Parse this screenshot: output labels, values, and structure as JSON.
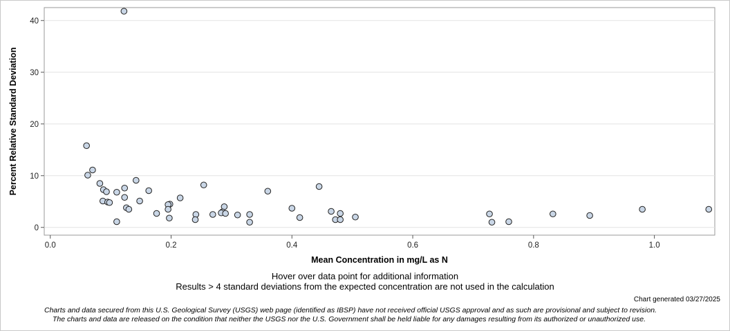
{
  "chart_data": {
    "type": "scatter",
    "xlabel": "Mean Concentration in mg/L as N",
    "ylabel": "Percent Relative Standard Deviation",
    "xlim": [
      -0.01,
      1.1
    ],
    "ylim": [
      -1.5,
      42.5
    ],
    "x_ticks": [
      0.0,
      0.2,
      0.4,
      0.6,
      0.8,
      1.0
    ],
    "x_tick_labels": [
      "0.0",
      "0.2",
      "0.4",
      "0.6",
      "0.8",
      "1.0"
    ],
    "y_ticks": [
      0,
      10,
      20,
      30,
      40
    ],
    "y_tick_labels": [
      "0",
      "10",
      "20",
      "30",
      "40"
    ],
    "grid": "horizontal",
    "marker_fill": "#c9d6e6",
    "marker_stroke": "#222222",
    "points": [
      {
        "x": 0.122,
        "y": 41.8
      },
      {
        "x": 0.06,
        "y": 15.8
      },
      {
        "x": 0.07,
        "y": 11.1
      },
      {
        "x": 0.062,
        "y": 10.1
      },
      {
        "x": 0.142,
        "y": 9.1
      },
      {
        "x": 0.082,
        "y": 8.5
      },
      {
        "x": 0.254,
        "y": 8.2
      },
      {
        "x": 0.445,
        "y": 7.9
      },
      {
        "x": 0.123,
        "y": 7.6
      },
      {
        "x": 0.088,
        "y": 7.3
      },
      {
        "x": 0.163,
        "y": 7.1
      },
      {
        "x": 0.36,
        "y": 7.0
      },
      {
        "x": 0.093,
        "y": 6.9
      },
      {
        "x": 0.11,
        "y": 6.8
      },
      {
        "x": 0.123,
        "y": 5.8
      },
      {
        "x": 0.215,
        "y": 5.7
      },
      {
        "x": 0.087,
        "y": 5.1
      },
      {
        "x": 0.148,
        "y": 5.1
      },
      {
        "x": 0.095,
        "y": 4.9
      },
      {
        "x": 0.098,
        "y": 4.8
      },
      {
        "x": 0.198,
        "y": 4.5
      },
      {
        "x": 0.195,
        "y": 4.4
      },
      {
        "x": 0.288,
        "y": 4.0
      },
      {
        "x": 0.126,
        "y": 3.8
      },
      {
        "x": 0.4,
        "y": 3.7
      },
      {
        "x": 0.13,
        "y": 3.5
      },
      {
        "x": 0.195,
        "y": 3.5
      },
      {
        "x": 0.98,
        "y": 3.5
      },
      {
        "x": 1.09,
        "y": 3.5
      },
      {
        "x": 0.465,
        "y": 3.1
      },
      {
        "x": 0.285,
        "y": 3.0
      },
      {
        "x": 0.283,
        "y": 2.8
      },
      {
        "x": 0.29,
        "y": 2.7
      },
      {
        "x": 0.176,
        "y": 2.7
      },
      {
        "x": 0.48,
        "y": 2.7
      },
      {
        "x": 0.727,
        "y": 2.6
      },
      {
        "x": 0.832,
        "y": 2.6
      },
      {
        "x": 0.241,
        "y": 2.5
      },
      {
        "x": 0.269,
        "y": 2.5
      },
      {
        "x": 0.33,
        "y": 2.5
      },
      {
        "x": 0.31,
        "y": 2.4
      },
      {
        "x": 0.893,
        "y": 2.3
      },
      {
        "x": 0.505,
        "y": 2.0
      },
      {
        "x": 0.413,
        "y": 1.9
      },
      {
        "x": 0.197,
        "y": 1.8
      },
      {
        "x": 0.24,
        "y": 1.5
      },
      {
        "x": 0.472,
        "y": 1.5
      },
      {
        "x": 0.48,
        "y": 1.5
      },
      {
        "x": 0.11,
        "y": 1.1
      },
      {
        "x": 0.759,
        "y": 1.1
      },
      {
        "x": 0.33,
        "y": 1.0
      },
      {
        "x": 0.731,
        "y": 1.0
      }
    ]
  },
  "notes": {
    "hover": "Hover over data point for additional information",
    "results": "Results > 4 standard deviations from the expected concentration are not used in the calculation",
    "generated": "Chart generated 03/27/2025",
    "disclaimer_line1": "Charts and data secured from this U.S. Geological Survey (USGS) web page (identified as IBSP) have not received official USGS approval and as such are provisional and subject to revision.",
    "disclaimer_line2": "The charts and data are released on the condition that neither the USGS nor the U.S. Government shall be held liable for any damages resulting from its authorized or unauthorized use."
  }
}
